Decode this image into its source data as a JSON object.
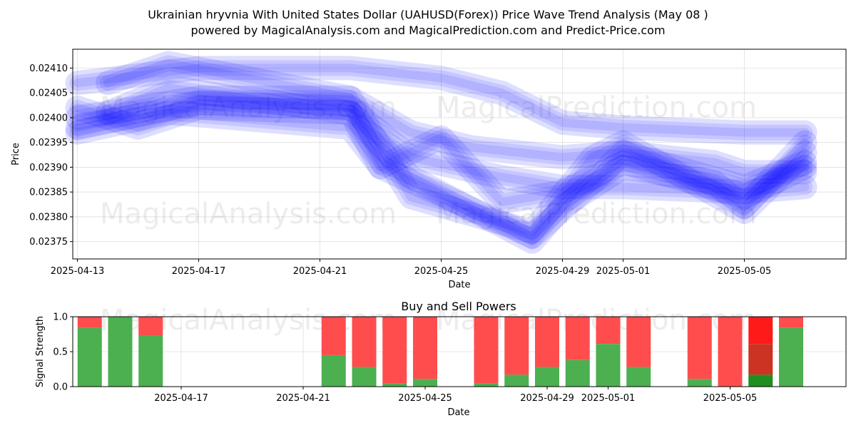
{
  "title_line1": "Ukrainian hryvnia With United States Dollar (UAHUSD(Forex)) Price Wave Trend Analysis (May 08 )",
  "title_line2": "powered by MagicalAnalysis.com and MagicalPrediction.com and Predict-Price.com",
  "watermarks": [
    "MagicalAnalysis.com",
    "MagicalPrediction.com"
  ],
  "chart_data": [
    {
      "type": "line",
      "xlabel": "Date",
      "ylabel": "Price",
      "x_ticks": [
        "2025-04-13",
        "2025-04-17",
        "2025-04-21",
        "2025-04-25",
        "2025-04-29",
        "2025-05-01",
        "2025-05-05"
      ],
      "y_ticks": [
        "0.02375",
        "0.02380",
        "0.02385",
        "0.02390",
        "0.02395",
        "0.02400",
        "0.02405",
        "0.02410"
      ],
      "xlim": [
        "2025-04-13",
        "2025-05-08"
      ],
      "ylim": [
        0.023715,
        0.024138
      ],
      "grid": true,
      "band_color": "#0000ff",
      "series": [
        {
          "x": [
            "2025-04-13",
            "2025-04-17",
            "2025-04-22",
            "2025-04-25",
            "2025-04-27",
            "2025-04-29",
            "2025-05-01",
            "2025-05-05",
            "2025-05-07"
          ],
          "values": [
            0.02407,
            0.0241,
            0.0241,
            0.02408,
            0.02405,
            0.02399,
            0.02398,
            0.02397,
            0.02397
          ]
        },
        {
          "x": [
            "2025-04-13",
            "2025-04-17",
            "2025-04-22",
            "2025-04-24",
            "2025-04-26",
            "2025-04-29",
            "2025-05-01",
            "2025-05-04",
            "2025-05-05",
            "2025-05-07"
          ],
          "values": [
            0.024,
            0.02404,
            0.02404,
            0.02397,
            0.02394,
            0.02392,
            0.02393,
            0.02391,
            0.02389,
            0.02389
          ]
        },
        {
          "x": [
            "2025-04-13",
            "2025-04-17",
            "2025-04-22",
            "2025-04-24",
            "2025-04-27",
            "2025-04-29",
            "2025-05-01",
            "2025-05-05",
            "2025-05-07"
          ],
          "values": [
            0.02398,
            0.02403,
            0.02402,
            0.02392,
            0.02388,
            0.02386,
            0.02386,
            0.02385,
            0.02386
          ]
        },
        {
          "x": [
            "2025-04-14",
            "2025-04-16",
            "2025-04-22",
            "2025-04-24",
            "2025-04-28",
            "2025-04-29",
            "2025-05-01",
            "2025-05-04",
            "2025-05-05",
            "2025-05-07"
          ],
          "values": [
            0.02401,
            0.02406,
            0.02401,
            0.02388,
            0.02375,
            0.02382,
            0.0239,
            0.02387,
            0.02382,
            0.02395
          ]
        },
        {
          "x": [
            "2025-04-14",
            "2025-04-16",
            "2025-04-22",
            "2025-04-24",
            "2025-04-28",
            "2025-04-30",
            "2025-05-01",
            "2025-05-05",
            "2025-05-07"
          ],
          "values": [
            0.02407,
            0.02411,
            0.02404,
            0.02384,
            0.02377,
            0.02392,
            0.02395,
            0.02381,
            0.02393
          ]
        },
        {
          "x": [
            "2025-04-13",
            "2025-04-15",
            "2025-04-17",
            "2025-04-22",
            "2025-04-23",
            "2025-04-25",
            "2025-04-27",
            "2025-04-29",
            "2025-05-01",
            "2025-05-05",
            "2025-05-07"
          ],
          "values": [
            0.02402,
            0.02398,
            0.02402,
            0.02401,
            0.0239,
            0.02396,
            0.02383,
            0.02385,
            0.02391,
            0.02384,
            0.0239
          ]
        },
        {
          "x": [
            "2025-04-13",
            "2025-04-16",
            "2025-04-22",
            "2025-04-23",
            "2025-04-28",
            "2025-04-30",
            "2025-05-01",
            "2025-05-05",
            "2025-05-07"
          ],
          "values": [
            0.02397,
            0.02401,
            0.02398,
            0.0239,
            0.02376,
            0.02387,
            0.02393,
            0.02386,
            0.02391
          ]
        }
      ]
    },
    {
      "type": "bar",
      "title": "Buy and Sell Powers",
      "xlabel": "Date",
      "ylabel": "Signal Strength",
      "x_ticks": [
        "2025-04-17",
        "2025-04-21",
        "2025-04-25",
        "2025-04-29",
        "2025-05-01",
        "2025-05-05"
      ],
      "y_ticks": [
        "0.0",
        "0.5",
        "1.0"
      ],
      "ylim": [
        0,
        1
      ],
      "buy_color": "#4caf50",
      "sell_color": "#ff4d4d",
      "bars": [
        {
          "date": "2025-04-14",
          "buy": 0.84
        },
        {
          "date": "2025-04-15",
          "buy": 1.0
        },
        {
          "date": "2025-04-16",
          "buy": 0.73
        },
        {
          "date": "2025-04-22",
          "buy": 0.45
        },
        {
          "date": "2025-04-23",
          "buy": 0.28
        },
        {
          "date": "2025-04-24",
          "buy": 0.05
        },
        {
          "date": "2025-04-25",
          "buy": 0.11
        },
        {
          "date": "2025-04-27",
          "buy": 0.05
        },
        {
          "date": "2025-04-28",
          "buy": 0.17
        },
        {
          "date": "2025-04-29",
          "buy": 0.28
        },
        {
          "date": "2025-04-30",
          "buy": 0.38
        },
        {
          "date": "2025-05-01",
          "buy": 0.61
        },
        {
          "date": "2025-05-02",
          "buy": 0.28
        },
        {
          "date": "2025-05-04",
          "buy": 0.11
        },
        {
          "date": "2025-05-05",
          "buy": 0.0
        },
        {
          "date": "2025-05-06",
          "buy": 0.17,
          "mid": 0.61,
          "buy_color": "#1f8f1f",
          "mid_color": "#cc3322",
          "sell_color": "#ff1a1a"
        },
        {
          "date": "2025-05-07",
          "buy": 0.84
        }
      ]
    }
  ]
}
